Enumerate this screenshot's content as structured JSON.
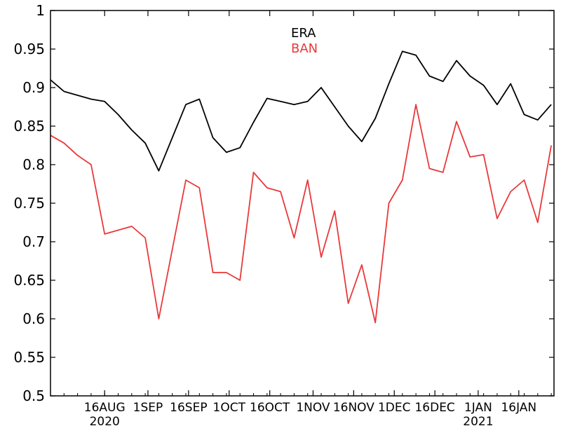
{
  "chart_data": {
    "type": "line",
    "title": "",
    "xlabel": "",
    "ylabel": "",
    "ylim": [
      0.5,
      1.0
    ],
    "xlim": [
      "2020-07-27",
      "2021-01-29"
    ],
    "y_ticks": [
      "0.5",
      "0.55",
      "0.6",
      "0.65",
      "0.7",
      "0.75",
      "0.8",
      "0.85",
      "0.9",
      "0.95",
      "1"
    ],
    "x_ticks": [
      {
        "date": "2020-08-16",
        "label": "16AUG",
        "year": "2020"
      },
      {
        "date": "2020-09-01",
        "label": "1SEP",
        "year": ""
      },
      {
        "date": "2020-09-16",
        "label": "16SEP",
        "year": ""
      },
      {
        "date": "2020-10-01",
        "label": "1OCT",
        "year": ""
      },
      {
        "date": "2020-10-16",
        "label": "16OCT",
        "year": ""
      },
      {
        "date": "2020-11-01",
        "label": "1NOV",
        "year": ""
      },
      {
        "date": "2020-11-16",
        "label": "16NOV",
        "year": ""
      },
      {
        "date": "2020-12-01",
        "label": "1DEC",
        "year": ""
      },
      {
        "date": "2020-12-16",
        "label": "16DEC",
        "year": ""
      },
      {
        "date": "2021-01-01",
        "label": "1JAN",
        "year": "2021"
      },
      {
        "date": "2021-01-16",
        "label": "16JAN",
        "year": ""
      }
    ],
    "legend_position": "top-center",
    "series": [
      {
        "name": "ERA",
        "color": "#000000",
        "x": [
          "2020-07-27",
          "2020-08-01",
          "2020-08-06",
          "2020-08-11",
          "2020-08-16",
          "2020-08-21",
          "2020-08-26",
          "2020-08-31",
          "2020-09-05",
          "2020-09-10",
          "2020-09-15",
          "2020-09-20",
          "2020-09-25",
          "2020-09-30",
          "2020-10-05",
          "2020-10-10",
          "2020-10-15",
          "2020-10-20",
          "2020-10-25",
          "2020-10-30",
          "2020-11-04",
          "2020-11-09",
          "2020-11-14",
          "2020-11-19",
          "2020-11-24",
          "2020-11-29",
          "2020-12-04",
          "2020-12-09",
          "2020-12-14",
          "2020-12-19",
          "2020-12-24",
          "2020-12-29",
          "2021-01-03",
          "2021-01-08",
          "2021-01-13",
          "2021-01-18",
          "2021-01-23",
          "2021-01-28"
        ],
        "values": [
          0.91,
          0.895,
          0.89,
          0.885,
          0.882,
          0.865,
          0.845,
          0.828,
          0.792,
          0.835,
          0.878,
          0.885,
          0.835,
          0.816,
          0.822,
          0.855,
          0.886,
          0.882,
          0.878,
          0.882,
          0.9,
          0.875,
          0.85,
          0.83,
          0.86,
          0.905,
          0.947,
          0.942,
          0.915,
          0.908,
          0.935,
          0.915,
          0.903,
          0.878,
          0.905,
          0.865,
          0.858,
          0.878
        ]
      },
      {
        "name": "BAN",
        "color": "#e8393b",
        "x": [
          "2020-07-27",
          "2020-08-01",
          "2020-08-06",
          "2020-08-11",
          "2020-08-16",
          "2020-08-21",
          "2020-08-26",
          "2020-08-31",
          "2020-09-05",
          "2020-09-10",
          "2020-09-15",
          "2020-09-20",
          "2020-09-25",
          "2020-09-30",
          "2020-10-05",
          "2020-10-10",
          "2020-10-15",
          "2020-10-20",
          "2020-10-25",
          "2020-10-30",
          "2020-11-04",
          "2020-11-09",
          "2020-11-14",
          "2020-11-19",
          "2020-11-24",
          "2020-11-29",
          "2020-12-04",
          "2020-12-09",
          "2020-12-14",
          "2020-12-19",
          "2020-12-24",
          "2020-12-29",
          "2021-01-03",
          "2021-01-08",
          "2021-01-13",
          "2021-01-18",
          "2021-01-23",
          "2021-01-28"
        ],
        "values": [
          0.838,
          0.828,
          0.812,
          0.8,
          0.71,
          0.715,
          0.72,
          0.705,
          0.6,
          0.69,
          0.78,
          0.77,
          0.66,
          0.66,
          0.65,
          0.79,
          0.77,
          0.765,
          0.705,
          0.78,
          0.68,
          0.74,
          0.62,
          0.67,
          0.595,
          0.75,
          0.78,
          0.878,
          0.795,
          0.79,
          0.856,
          0.81,
          0.813,
          0.73,
          0.765,
          0.78,
          0.725,
          0.825
        ]
      }
    ]
  }
}
